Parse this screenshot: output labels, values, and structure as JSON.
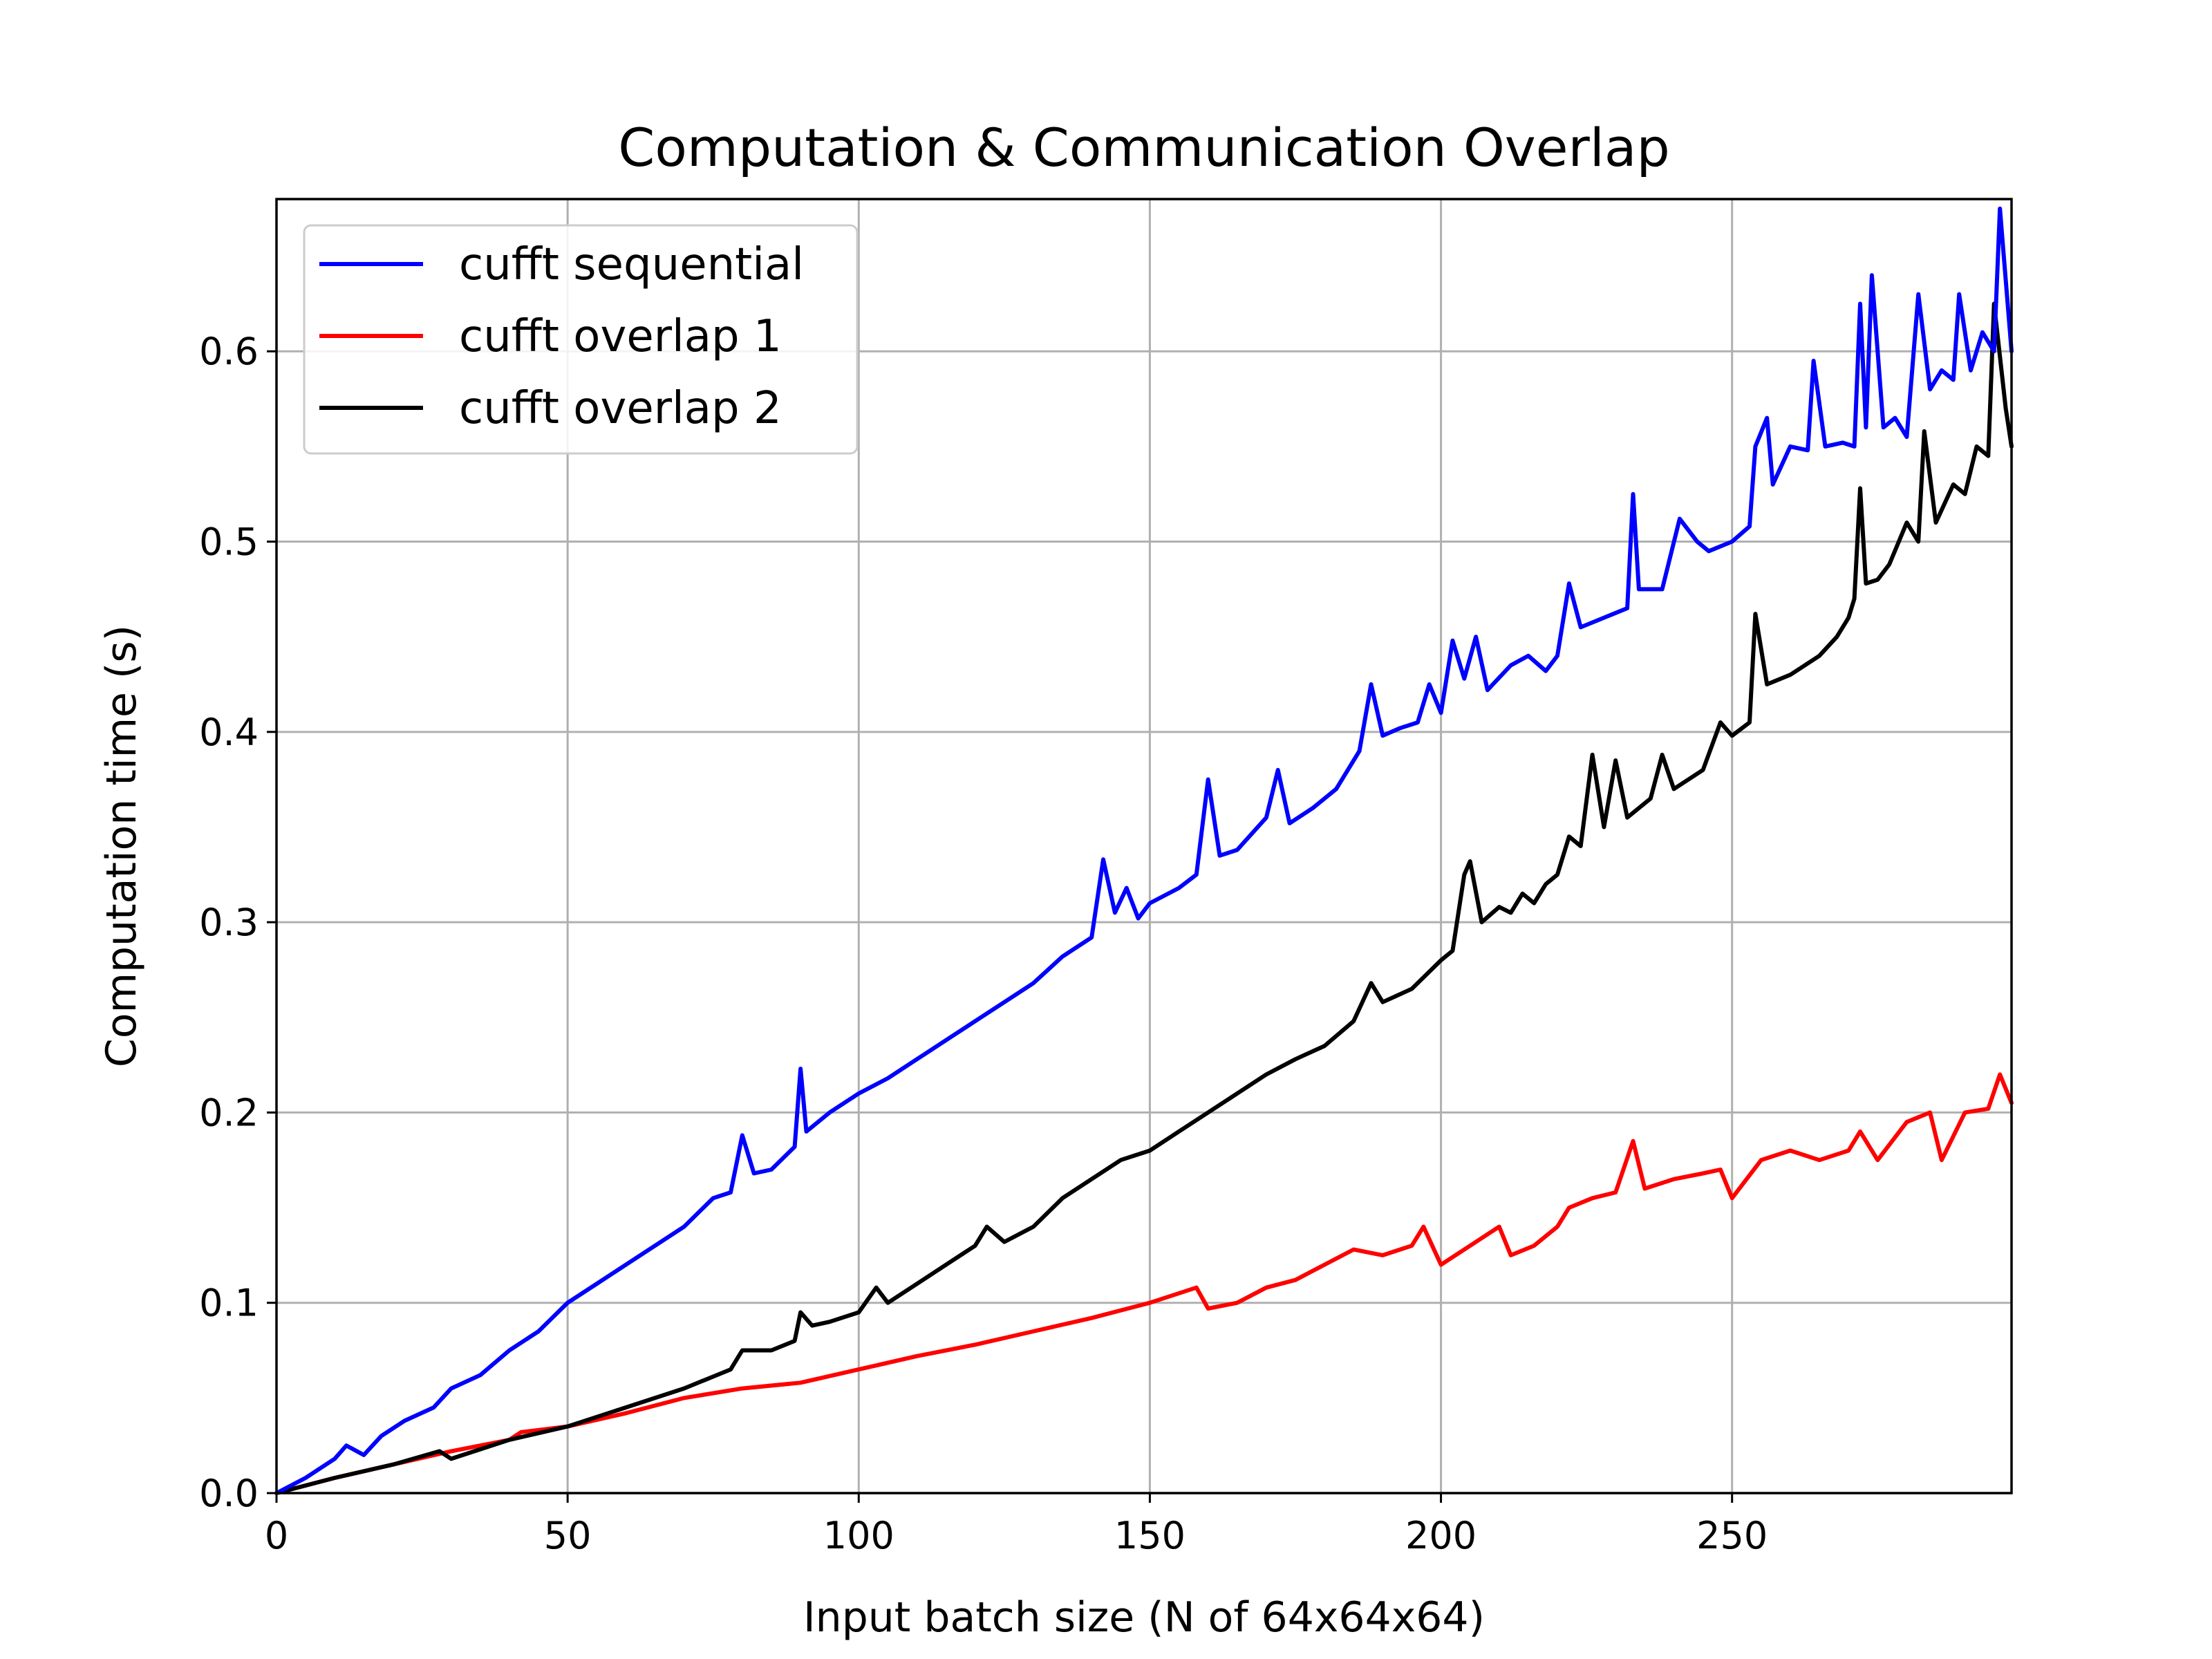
{
  "chart_data": {
    "type": "line",
    "title": "Computation & Communication Overlap",
    "xlabel": "Input batch size (N of 64x64x64)",
    "ylabel": "Computation time (s)",
    "xlim": [
      0,
      298
    ],
    "ylim": [
      0,
      0.68
    ],
    "xticks": [
      0,
      50,
      100,
      150,
      200,
      250
    ],
    "xtick_labels": [
      "0",
      "50",
      "100",
      "150",
      "200",
      "250"
    ],
    "yticks": [
      0.0,
      0.1,
      0.2,
      0.3,
      0.4,
      0.5,
      0.6
    ],
    "ytick_labels": [
      "0.0",
      "0.1",
      "0.2",
      "0.3",
      "0.4",
      "0.5",
      "0.6"
    ],
    "grid": true,
    "legend_position": "top-left",
    "series": [
      {
        "name": "cufft sequential",
        "color": "#0000ff",
        "points": [
          [
            0,
            0
          ],
          [
            5,
            0.008
          ],
          [
            10,
            0.018
          ],
          [
            12,
            0.025
          ],
          [
            15,
            0.02
          ],
          [
            18,
            0.03
          ],
          [
            22,
            0.038
          ],
          [
            27,
            0.045
          ],
          [
            30,
            0.055
          ],
          [
            35,
            0.062
          ],
          [
            40,
            0.075
          ],
          [
            45,
            0.085
          ],
          [
            50,
            0.1
          ],
          [
            55,
            0.11
          ],
          [
            60,
            0.12
          ],
          [
            65,
            0.13
          ],
          [
            70,
            0.14
          ],
          [
            75,
            0.155
          ],
          [
            78,
            0.158
          ],
          [
            80,
            0.188
          ],
          [
            82,
            0.168
          ],
          [
            85,
            0.17
          ],
          [
            89,
            0.182
          ],
          [
            90,
            0.223
          ],
          [
            91,
            0.19
          ],
          [
            95,
            0.2
          ],
          [
            100,
            0.21
          ],
          [
            105,
            0.218
          ],
          [
            110,
            0.228
          ],
          [
            115,
            0.238
          ],
          [
            120,
            0.248
          ],
          [
            125,
            0.258
          ],
          [
            130,
            0.268
          ],
          [
            135,
            0.282
          ],
          [
            140,
            0.292
          ],
          [
            142,
            0.333
          ],
          [
            144,
            0.305
          ],
          [
            146,
            0.318
          ],
          [
            148,
            0.302
          ],
          [
            150,
            0.31
          ],
          [
            155,
            0.318
          ],
          [
            158,
            0.325
          ],
          [
            160,
            0.375
          ],
          [
            162,
            0.335
          ],
          [
            165,
            0.338
          ],
          [
            170,
            0.355
          ],
          [
            172,
            0.38
          ],
          [
            174,
            0.352
          ],
          [
            178,
            0.36
          ],
          [
            182,
            0.37
          ],
          [
            186,
            0.39
          ],
          [
            188,
            0.425
          ],
          [
            190,
            0.398
          ],
          [
            193,
            0.402
          ],
          [
            196,
            0.405
          ],
          [
            198,
            0.425
          ],
          [
            200,
            0.41
          ],
          [
            202,
            0.448
          ],
          [
            204,
            0.428
          ],
          [
            206,
            0.45
          ],
          [
            208,
            0.422
          ],
          [
            212,
            0.435
          ],
          [
            215,
            0.44
          ],
          [
            218,
            0.432
          ],
          [
            220,
            0.44
          ],
          [
            222,
            0.478
          ],
          [
            224,
            0.455
          ],
          [
            228,
            0.46
          ],
          [
            232,
            0.465
          ],
          [
            233,
            0.525
          ],
          [
            234,
            0.475
          ],
          [
            238,
            0.475
          ],
          [
            241,
            0.512
          ],
          [
            244,
            0.5
          ],
          [
            246,
            0.495
          ],
          [
            250,
            0.5
          ],
          [
            253,
            0.508
          ],
          [
            254,
            0.55
          ],
          [
            256,
            0.565
          ],
          [
            257,
            0.53
          ],
          [
            260,
            0.55
          ],
          [
            263,
            0.548
          ],
          [
            264,
            0.595
          ],
          [
            266,
            0.55
          ],
          [
            269,
            0.552
          ],
          [
            271,
            0.55
          ],
          [
            272,
            0.625
          ],
          [
            273,
            0.56
          ],
          [
            274,
            0.64
          ],
          [
            276,
            0.56
          ],
          [
            278,
            0.565
          ],
          [
            280,
            0.555
          ],
          [
            282,
            0.63
          ],
          [
            284,
            0.58
          ],
          [
            286,
            0.59
          ],
          [
            288,
            0.585
          ],
          [
            289,
            0.63
          ],
          [
            291,
            0.59
          ],
          [
            293,
            0.61
          ],
          [
            295,
            0.6
          ],
          [
            296,
            0.675
          ],
          [
            298,
            0.6
          ]
        ]
      },
      {
        "name": "cufft overlap 1",
        "color": "#ff0000",
        "points": [
          [
            0,
            0
          ],
          [
            10,
            0.008
          ],
          [
            20,
            0.015
          ],
          [
            30,
            0.022
          ],
          [
            40,
            0.028
          ],
          [
            42,
            0.032
          ],
          [
            50,
            0.035
          ],
          [
            60,
            0.042
          ],
          [
            70,
            0.05
          ],
          [
            80,
            0.055
          ],
          [
            90,
            0.058
          ],
          [
            100,
            0.065
          ],
          [
            110,
            0.072
          ],
          [
            120,
            0.078
          ],
          [
            130,
            0.085
          ],
          [
            140,
            0.092
          ],
          [
            150,
            0.1
          ],
          [
            158,
            0.108
          ],
          [
            160,
            0.097
          ],
          [
            165,
            0.1
          ],
          [
            170,
            0.108
          ],
          [
            175,
            0.112
          ],
          [
            180,
            0.12
          ],
          [
            185,
            0.128
          ],
          [
            190,
            0.125
          ],
          [
            195,
            0.13
          ],
          [
            197,
            0.14
          ],
          [
            200,
            0.12
          ],
          [
            205,
            0.13
          ],
          [
            210,
            0.14
          ],
          [
            212,
            0.125
          ],
          [
            216,
            0.13
          ],
          [
            220,
            0.14
          ],
          [
            222,
            0.15
          ],
          [
            226,
            0.155
          ],
          [
            230,
            0.158
          ],
          [
            233,
            0.185
          ],
          [
            235,
            0.16
          ],
          [
            240,
            0.165
          ],
          [
            245,
            0.168
          ],
          [
            248,
            0.17
          ],
          [
            250,
            0.155
          ],
          [
            255,
            0.175
          ],
          [
            260,
            0.18
          ],
          [
            265,
            0.175
          ],
          [
            270,
            0.18
          ],
          [
            272,
            0.19
          ],
          [
            275,
            0.175
          ],
          [
            280,
            0.195
          ],
          [
            284,
            0.2
          ],
          [
            286,
            0.175
          ],
          [
            290,
            0.2
          ],
          [
            294,
            0.202
          ],
          [
            296,
            0.22
          ],
          [
            298,
            0.205
          ]
        ]
      },
      {
        "name": "cufft overlap 2",
        "color": "#000000",
        "points": [
          [
            0,
            0
          ],
          [
            10,
            0.008
          ],
          [
            20,
            0.015
          ],
          [
            28,
            0.022
          ],
          [
            30,
            0.018
          ],
          [
            40,
            0.028
          ],
          [
            50,
            0.035
          ],
          [
            60,
            0.045
          ],
          [
            70,
            0.055
          ],
          [
            78,
            0.065
          ],
          [
            80,
            0.075
          ],
          [
            85,
            0.075
          ],
          [
            89,
            0.08
          ],
          [
            90,
            0.095
          ],
          [
            92,
            0.088
          ],
          [
            95,
            0.09
          ],
          [
            100,
            0.095
          ],
          [
            103,
            0.108
          ],
          [
            105,
            0.1
          ],
          [
            110,
            0.11
          ],
          [
            115,
            0.12
          ],
          [
            120,
            0.13
          ],
          [
            122,
            0.14
          ],
          [
            125,
            0.132
          ],
          [
            130,
            0.14
          ],
          [
            135,
            0.155
          ],
          [
            140,
            0.165
          ],
          [
            145,
            0.175
          ],
          [
            150,
            0.18
          ],
          [
            155,
            0.19
          ],
          [
            160,
            0.2
          ],
          [
            165,
            0.21
          ],
          [
            170,
            0.22
          ],
          [
            175,
            0.228
          ],
          [
            180,
            0.235
          ],
          [
            185,
            0.248
          ],
          [
            188,
            0.268
          ],
          [
            190,
            0.258
          ],
          [
            195,
            0.265
          ],
          [
            200,
            0.28
          ],
          [
            202,
            0.285
          ],
          [
            204,
            0.325
          ],
          [
            205,
            0.332
          ],
          [
            207,
            0.3
          ],
          [
            210,
            0.308
          ],
          [
            212,
            0.305
          ],
          [
            214,
            0.315
          ],
          [
            216,
            0.31
          ],
          [
            218,
            0.32
          ],
          [
            220,
            0.325
          ],
          [
            222,
            0.345
          ],
          [
            224,
            0.34
          ],
          [
            226,
            0.388
          ],
          [
            228,
            0.35
          ],
          [
            230,
            0.385
          ],
          [
            232,
            0.355
          ],
          [
            236,
            0.365
          ],
          [
            238,
            0.388
          ],
          [
            240,
            0.37
          ],
          [
            245,
            0.38
          ],
          [
            248,
            0.405
          ],
          [
            250,
            0.398
          ],
          [
            253,
            0.405
          ],
          [
            254,
            0.462
          ],
          [
            256,
            0.425
          ],
          [
            260,
            0.43
          ],
          [
            265,
            0.44
          ],
          [
            268,
            0.45
          ],
          [
            270,
            0.46
          ],
          [
            271,
            0.47
          ],
          [
            272,
            0.528
          ],
          [
            273,
            0.478
          ],
          [
            275,
            0.48
          ],
          [
            277,
            0.488
          ],
          [
            280,
            0.51
          ],
          [
            282,
            0.5
          ],
          [
            283,
            0.558
          ],
          [
            285,
            0.51
          ],
          [
            288,
            0.53
          ],
          [
            290,
            0.525
          ],
          [
            292,
            0.55
          ],
          [
            294,
            0.545
          ],
          [
            295,
            0.625
          ],
          [
            297,
            0.57
          ],
          [
            298,
            0.55
          ]
        ]
      }
    ]
  }
}
